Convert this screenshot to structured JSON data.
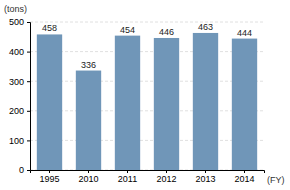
{
  "chart_data": {
    "type": "bar",
    "categories": [
      "1995",
      "2010",
      "2011",
      "2012",
      "2013",
      "2014"
    ],
    "values": [
      458,
      336,
      454,
      446,
      463,
      444
    ],
    "color": "#7096b8",
    "ylim": [
      0,
      500
    ],
    "yticks": [
      0,
      100,
      200,
      300,
      400,
      500
    ],
    "grid": true,
    "data_labels": true,
    "x_label": "(FY)",
    "y_label": "(tons)"
  }
}
